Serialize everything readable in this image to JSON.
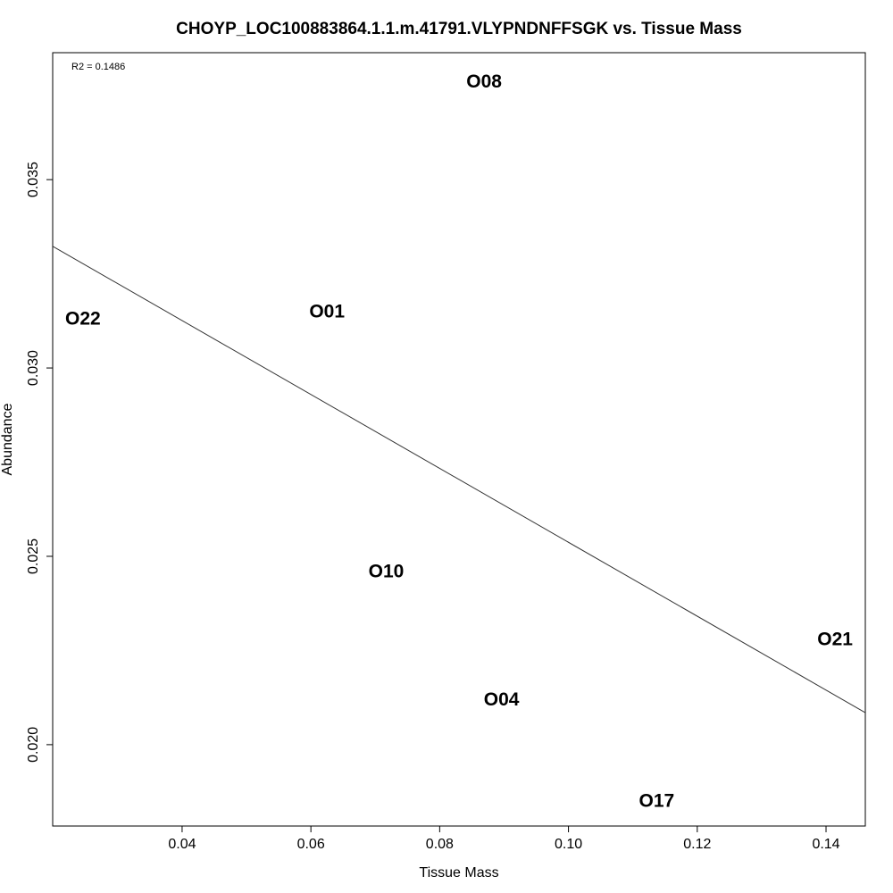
{
  "chart_data": {
    "type": "scatter",
    "title": "CHOYP_LOC100883864.1.1.m.41791.VLYPNDNFFSGK vs. Tissue Mass",
    "xlabel": "Tissue Mass",
    "ylabel": "Abundance",
    "xlim": [
      0.0199,
      0.1461
    ],
    "ylim": [
      0.01784,
      0.03837
    ],
    "x_ticks": [
      0.04,
      0.06,
      0.08,
      0.1,
      0.12,
      0.14
    ],
    "x_tick_labels": [
      "0.04",
      "0.06",
      "0.08",
      "0.10",
      "0.12",
      "0.14"
    ],
    "y_ticks": [
      0.02,
      0.025,
      0.03,
      0.035
    ],
    "y_tick_labels": [
      "0.020",
      "0.025",
      "0.030",
      "0.035"
    ],
    "annotation": "R2 = 0.1486",
    "points": [
      {
        "label": "O22",
        "x": 0.0246,
        "y": 0.0313
      },
      {
        "label": "O01",
        "x": 0.0625,
        "y": 0.0315
      },
      {
        "label": "O08",
        "x": 0.0869,
        "y": 0.0376
      },
      {
        "label": "O10",
        "x": 0.0717,
        "y": 0.0246
      },
      {
        "label": "O04",
        "x": 0.0896,
        "y": 0.0212
      },
      {
        "label": "O17",
        "x": 0.1137,
        "y": 0.0185
      },
      {
        "label": "O21",
        "x": 0.1414,
        "y": 0.0228
      }
    ],
    "regression_line": {
      "x": [
        0.0199,
        0.1461
      ],
      "y": [
        0.03323,
        0.02085
      ]
    },
    "grid": false
  }
}
